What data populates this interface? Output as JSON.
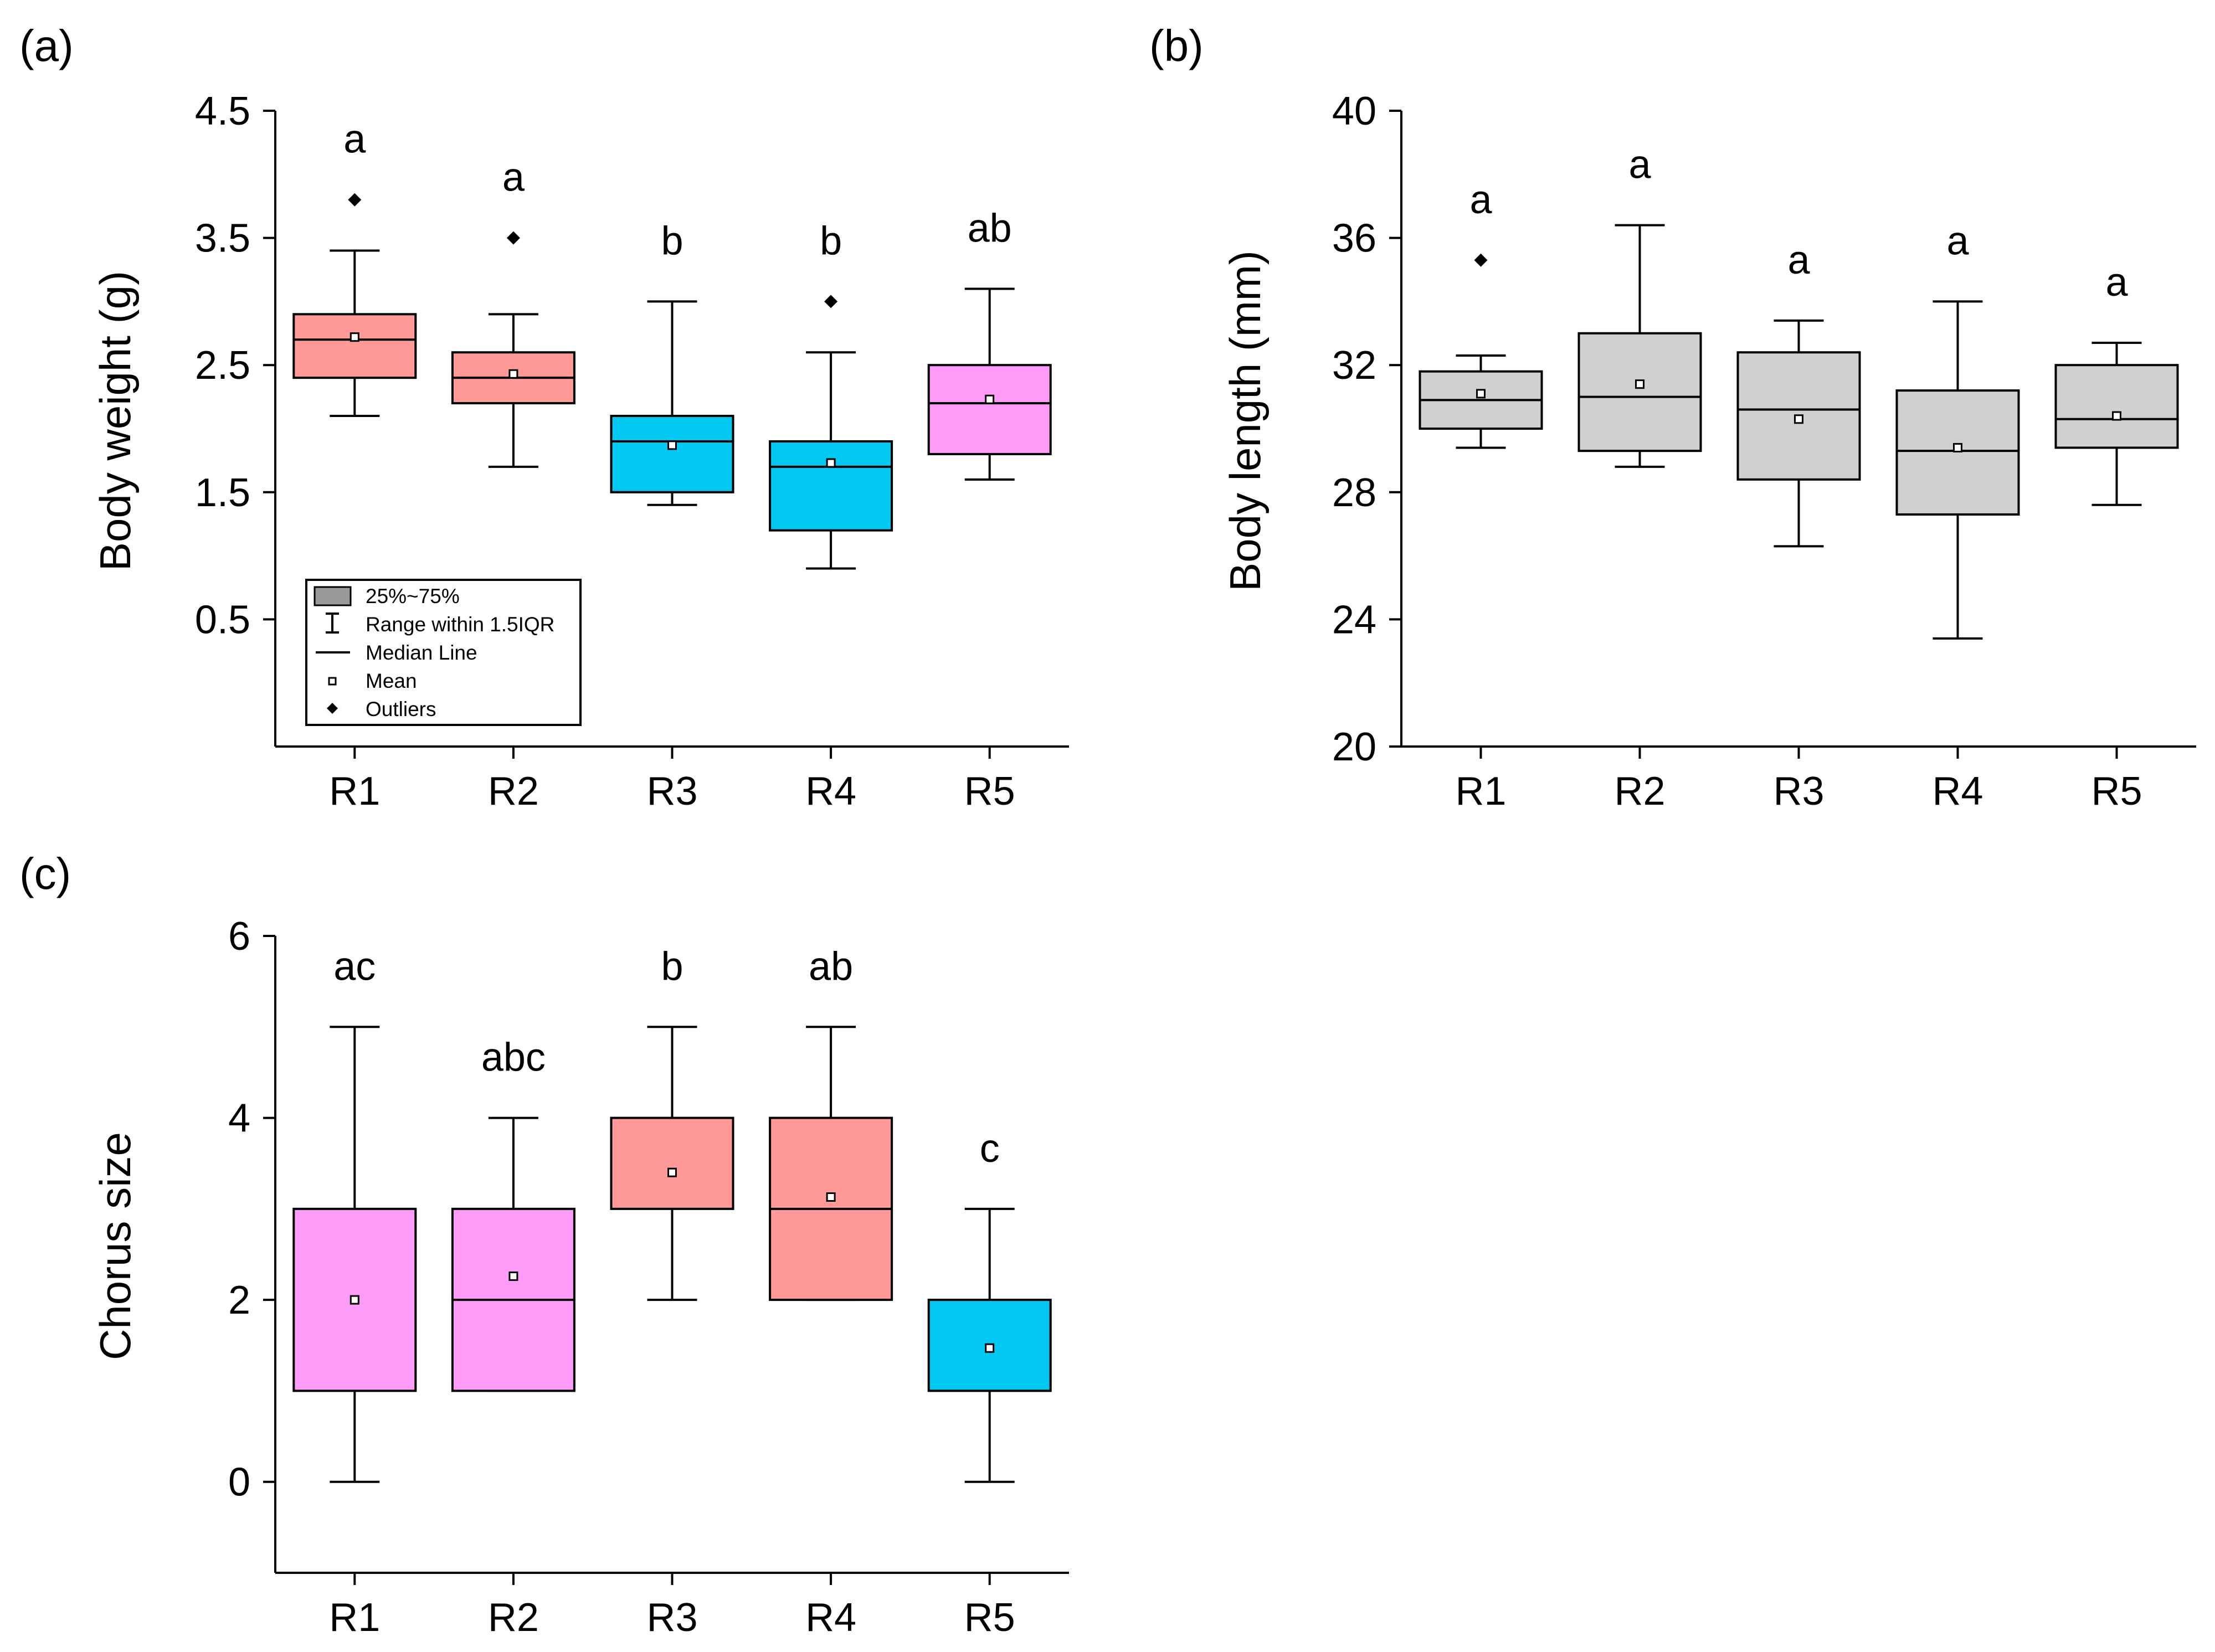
{
  "figure": {
    "panel_a_label": "(a)",
    "panel_b_label": "(b)",
    "panel_c_label": "(c)"
  },
  "legend": {
    "box": "25%~75%",
    "whisker": "Range within 1.5IQR",
    "median": "Median Line",
    "mean": "Mean",
    "outliers": "Outliers"
  },
  "colors": {
    "salmon": "#FF9A98",
    "cyan": "#00C8F0",
    "pink": "#FF9CFA",
    "gray": "#D0D0D0",
    "legend_box": "#999999"
  },
  "chart_data": [
    {
      "type": "boxplot",
      "ylabel": "Body weight (g)",
      "ylim": [
        -0.5,
        4.5
      ],
      "yticks": [
        0.5,
        1.5,
        2.5,
        3.5,
        4.5
      ],
      "categories": [
        "R1",
        "R2",
        "R3",
        "R4",
        "R5"
      ],
      "groups": [
        {
          "q1": 2.4,
          "median": 2.7,
          "q3": 2.9,
          "whisker_low": 2.1,
          "whisker_high": 3.4,
          "mean": 2.72,
          "outliers": [
            3.8
          ],
          "letter": "a",
          "color": "#FF9A98"
        },
        {
          "q1": 2.2,
          "median": 2.4,
          "q3": 2.6,
          "whisker_low": 1.7,
          "whisker_high": 2.9,
          "mean": 2.43,
          "outliers": [
            3.5
          ],
          "letter": "a",
          "color": "#FF9A98"
        },
        {
          "q1": 1.5,
          "median": 1.9,
          "q3": 2.1,
          "whisker_low": 1.4,
          "whisker_high": 3.0,
          "mean": 1.87,
          "outliers": [],
          "letter": "b",
          "color": "#00C8F0"
        },
        {
          "q1": 1.2,
          "median": 1.7,
          "q3": 1.9,
          "whisker_low": 0.9,
          "whisker_high": 2.6,
          "mean": 1.73,
          "outliers": [
            3.0
          ],
          "letter": "b",
          "color": "#00C8F0"
        },
        {
          "q1": 1.8,
          "median": 2.2,
          "q3": 2.5,
          "whisker_low": 1.6,
          "whisker_high": 3.1,
          "mean": 2.23,
          "outliers": [],
          "letter": "ab",
          "color": "#FF9CFA"
        }
      ]
    },
    {
      "type": "boxplot",
      "ylabel": "Body length (mm)",
      "ylim": [
        20,
        40
      ],
      "yticks": [
        20,
        24,
        28,
        32,
        36,
        40
      ],
      "categories": [
        "R1",
        "R2",
        "R3",
        "R4",
        "R5"
      ],
      "groups": [
        {
          "q1": 30.0,
          "median": 30.9,
          "q3": 31.8,
          "whisker_low": 29.4,
          "whisker_high": 32.3,
          "mean": 31.1,
          "outliers": [
            35.3
          ],
          "letter": "a",
          "color": "#D0D0D0"
        },
        {
          "q1": 29.3,
          "median": 31.0,
          "q3": 33.0,
          "whisker_low": 28.8,
          "whisker_high": 36.4,
          "mean": 31.4,
          "outliers": [],
          "letter": "a",
          "color": "#D0D0D0"
        },
        {
          "q1": 28.4,
          "median": 30.6,
          "q3": 32.4,
          "whisker_low": 26.3,
          "whisker_high": 33.4,
          "mean": 30.3,
          "outliers": [],
          "letter": "a",
          "color": "#D0D0D0"
        },
        {
          "q1": 27.3,
          "median": 29.3,
          "q3": 31.2,
          "whisker_low": 23.4,
          "whisker_high": 34.0,
          "mean": 29.4,
          "outliers": [],
          "letter": "a",
          "color": "#D0D0D0"
        },
        {
          "q1": 29.4,
          "median": 30.3,
          "q3": 32.0,
          "whisker_low": 27.6,
          "whisker_high": 32.7,
          "mean": 30.4,
          "outliers": [],
          "letter": "a",
          "color": "#D0D0D0"
        }
      ]
    },
    {
      "type": "boxplot",
      "ylabel": "Chorus size",
      "ylim": [
        -1,
        6
      ],
      "yticks": [
        0,
        2,
        4,
        6
      ],
      "categories": [
        "R1",
        "R2",
        "R3",
        "R4",
        "R5"
      ],
      "groups": [
        {
          "q1": 1,
          "median": null,
          "q3": 3,
          "whisker_low": 0,
          "whisker_high": 5,
          "mean": 2.0,
          "outliers": [],
          "letter": "ac",
          "color": "#FF9CFA"
        },
        {
          "q1": 1,
          "median": 2,
          "q3": 3,
          "whisker_low": 1,
          "whisker_high": 4,
          "mean": 2.26,
          "outliers": [],
          "letter": "abc",
          "color": "#FF9CFA"
        },
        {
          "q1": 3,
          "median": null,
          "q3": 4,
          "whisker_low": 2,
          "whisker_high": 5,
          "mean": 3.4,
          "outliers": [],
          "letter": "b",
          "color": "#FF9A98"
        },
        {
          "q1": 2,
          "median": 3,
          "q3": 4,
          "whisker_low": 2,
          "whisker_high": 5,
          "mean": 3.13,
          "outliers": [],
          "letter": "ab",
          "color": "#FF9A98"
        },
        {
          "q1": 1,
          "median": null,
          "q3": 2,
          "whisker_low": 0,
          "whisker_high": 3,
          "mean": 1.47,
          "outliers": [],
          "letter": "c",
          "color": "#00C8F0"
        }
      ]
    }
  ]
}
